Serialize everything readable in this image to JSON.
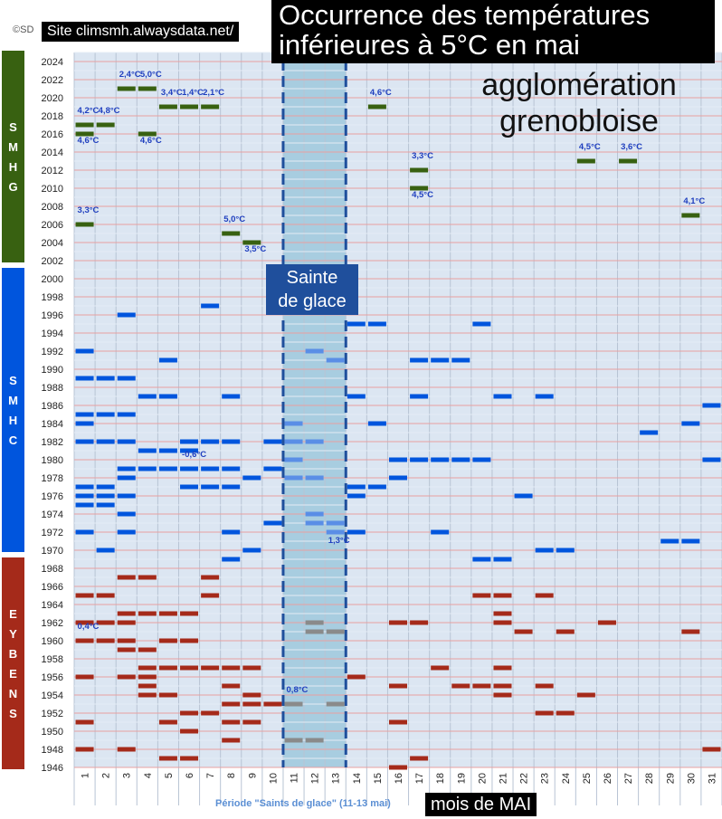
{
  "header": {
    "copyright": "©SD",
    "site": "Site climsmh.alwaysdata.net/",
    "title_line1": "Occurrence des températures",
    "title_line2": "inférieures à 5°C en mai",
    "subtitle_line1": "agglomération",
    "subtitle_line2": "grenobloise"
  },
  "annotations": {
    "saints_box_line1": "Sainte",
    "saints_box_line2": "de glace",
    "period_label": "Période \"Saints de glace\" (11-13 mai)",
    "xlabel": "mois de MAI"
  },
  "colors": {
    "smhg": "#386111",
    "smhc": "#0055dd",
    "eybens": "#a52a1a",
    "saints": "#7f9fbe",
    "saints_band": "#a8cde0",
    "grid_red": "#e8a0a0",
    "plot_bg": "#dce6f2",
    "label_blue": "#1f3fbf"
  },
  "chart_data": {
    "type": "scatter",
    "xlabel": "mois de MAI",
    "ylabel": "",
    "xlim": [
      1,
      31
    ],
    "ylim": [
      1946,
      2025
    ],
    "x_ticks": [
      1,
      2,
      3,
      4,
      5,
      6,
      7,
      8,
      9,
      10,
      11,
      12,
      13,
      14,
      15,
      16,
      17,
      18,
      19,
      20,
      21,
      22,
      23,
      24,
      25,
      26,
      27,
      28,
      29,
      30,
      31
    ],
    "y_ticks": [
      1946,
      1948,
      1950,
      1952,
      1954,
      1956,
      1958,
      1960,
      1962,
      1964,
      1966,
      1968,
      1970,
      1972,
      1974,
      1976,
      1978,
      1980,
      1982,
      1984,
      1986,
      1988,
      1990,
      1992,
      1994,
      1996,
      1998,
      2000,
      2002,
      2004,
      2006,
      2008,
      2010,
      2012,
      2014,
      2016,
      2018,
      2020,
      2022,
      2024
    ],
    "highlight_days": [
      11,
      13
    ],
    "stations": [
      {
        "name": "SMHG",
        "letters": "SMHG",
        "from": 2002,
        "to": 2024,
        "color": "#386111"
      },
      {
        "name": "SMHC",
        "letters": "SMHC",
        "from": 1970,
        "to": 2000,
        "color": "#0055dd"
      },
      {
        "name": "EYBENS",
        "letters": "EYBENS",
        "from": 1946,
        "to": 1968,
        "color": "#a52a1a"
      }
    ],
    "series": [
      {
        "name": "SMHG",
        "points": [
          [
            1,
            2006
          ],
          [
            1,
            2016
          ],
          [
            1,
            2017
          ],
          [
            2,
            2017
          ],
          [
            3,
            2021
          ],
          [
            4,
            2021
          ],
          [
            4,
            2016
          ],
          [
            5,
            2019
          ],
          [
            6,
            2019
          ],
          [
            7,
            2019
          ],
          [
            8,
            2005
          ],
          [
            9,
            2004
          ],
          [
            15,
            2019
          ],
          [
            17,
            2012
          ],
          [
            17,
            2010
          ],
          [
            25,
            2013
          ],
          [
            27,
            2013
          ],
          [
            30,
            2007
          ]
        ]
      },
      {
        "name": "SMHC",
        "points": [
          [
            1,
            1992
          ],
          [
            1,
            1989
          ],
          [
            1,
            1985
          ],
          [
            1,
            1984
          ],
          [
            1,
            1982
          ],
          [
            1,
            1977
          ],
          [
            1,
            1976
          ],
          [
            1,
            1975
          ],
          [
            1,
            1972
          ],
          [
            2,
            1989
          ],
          [
            2,
            1985
          ],
          [
            2,
            1982
          ],
          [
            2,
            1977
          ],
          [
            2,
            1976
          ],
          [
            2,
            1975
          ],
          [
            2,
            1970
          ],
          [
            3,
            1996
          ],
          [
            3,
            1989
          ],
          [
            3,
            1985
          ],
          [
            3,
            1982
          ],
          [
            3,
            1979
          ],
          [
            3,
            1978
          ],
          [
            3,
            1976
          ],
          [
            3,
            1974
          ],
          [
            3,
            1972
          ],
          [
            4,
            1987
          ],
          [
            4,
            1981
          ],
          [
            4,
            1979
          ],
          [
            5,
            1991
          ],
          [
            5,
            1987
          ],
          [
            5,
            1981
          ],
          [
            5,
            1979
          ],
          [
            6,
            1982
          ],
          [
            6,
            1981
          ],
          [
            6,
            1979
          ],
          [
            6,
            1977
          ],
          [
            7,
            1997
          ],
          [
            7,
            1982
          ],
          [
            7,
            1979
          ],
          [
            7,
            1977
          ],
          [
            8,
            1987
          ],
          [
            8,
            1982
          ],
          [
            8,
            1979
          ],
          [
            8,
            1977
          ],
          [
            8,
            1972
          ],
          [
            8,
            1969
          ],
          [
            9,
            1978
          ],
          [
            9,
            1970
          ],
          [
            10,
            1982
          ],
          [
            10,
            1979
          ],
          [
            10,
            1973
          ],
          [
            14,
            1995
          ],
          [
            14,
            1987
          ],
          [
            14,
            1977
          ],
          [
            14,
            1976
          ],
          [
            14,
            1972
          ],
          [
            15,
            1995
          ],
          [
            15,
            1984
          ],
          [
            15,
            1977
          ],
          [
            16,
            1980
          ],
          [
            16,
            1978
          ],
          [
            17,
            1991
          ],
          [
            17,
            1987
          ],
          [
            17,
            1980
          ],
          [
            18,
            1991
          ],
          [
            18,
            1980
          ],
          [
            18,
            1972
          ],
          [
            19,
            1991
          ],
          [
            19,
            1980
          ],
          [
            20,
            1995
          ],
          [
            20,
            1980
          ],
          [
            20,
            1969
          ],
          [
            21,
            1987
          ],
          [
            21,
            1969
          ],
          [
            22,
            1976
          ],
          [
            23,
            1987
          ],
          [
            23,
            1970
          ],
          [
            24,
            1970
          ],
          [
            28,
            1983
          ],
          [
            29,
            1971
          ],
          [
            30,
            1984
          ],
          [
            30,
            1971
          ],
          [
            31,
            1986
          ],
          [
            31,
            1980
          ]
        ]
      },
      {
        "name": "EYBENS",
        "points": [
          [
            1,
            1965
          ],
          [
            1,
            1962
          ],
          [
            1,
            1960
          ],
          [
            1,
            1956
          ],
          [
            1,
            1951
          ],
          [
            1,
            1948
          ],
          [
            2,
            1965
          ],
          [
            2,
            1962
          ],
          [
            2,
            1960
          ],
          [
            3,
            1967
          ],
          [
            3,
            1963
          ],
          [
            3,
            1962
          ],
          [
            3,
            1960
          ],
          [
            3,
            1959
          ],
          [
            3,
            1956
          ],
          [
            3,
            1948
          ],
          [
            4,
            1967
          ],
          [
            4,
            1963
          ],
          [
            4,
            1959
          ],
          [
            4,
            1957
          ],
          [
            4,
            1956
          ],
          [
            4,
            1955
          ],
          [
            4,
            1954
          ],
          [
            5,
            1963
          ],
          [
            5,
            1960
          ],
          [
            5,
            1957
          ],
          [
            5,
            1954
          ],
          [
            5,
            1951
          ],
          [
            5,
            1947
          ],
          [
            6,
            1963
          ],
          [
            6,
            1960
          ],
          [
            6,
            1957
          ],
          [
            6,
            1952
          ],
          [
            6,
            1950
          ],
          [
            6,
            1947
          ],
          [
            7,
            1967
          ],
          [
            7,
            1965
          ],
          [
            7,
            1957
          ],
          [
            7,
            1952
          ],
          [
            8,
            1957
          ],
          [
            8,
            1955
          ],
          [
            8,
            1953
          ],
          [
            8,
            1951
          ],
          [
            8,
            1949
          ],
          [
            9,
            1957
          ],
          [
            9,
            1954
          ],
          [
            9,
            1953
          ],
          [
            9,
            1951
          ],
          [
            10,
            1953
          ],
          [
            14,
            1956
          ],
          [
            16,
            1962
          ],
          [
            16,
            1955
          ],
          [
            16,
            1951
          ],
          [
            16,
            1946
          ],
          [
            17,
            1962
          ],
          [
            17,
            1947
          ],
          [
            18,
            1957
          ],
          [
            19,
            1955
          ],
          [
            20,
            1965
          ],
          [
            20,
            1955
          ],
          [
            21,
            1965
          ],
          [
            21,
            1963
          ],
          [
            21,
            1962
          ],
          [
            21,
            1957
          ],
          [
            21,
            1955
          ],
          [
            21,
            1954
          ],
          [
            22,
            1961
          ],
          [
            23,
            1965
          ],
          [
            23,
            1955
          ],
          [
            23,
            1952
          ],
          [
            24,
            1961
          ],
          [
            24,
            1952
          ],
          [
            25,
            1954
          ],
          [
            26,
            1962
          ],
          [
            30,
            1961
          ],
          [
            31,
            1948
          ]
        ]
      },
      {
        "name": "Saints de glace",
        "points": [
          [
            11,
            1984
          ],
          [
            11,
            1982
          ],
          [
            11,
            1980
          ],
          [
            11,
            1978
          ],
          [
            12,
            1992
          ],
          [
            12,
            1982
          ],
          [
            12,
            1978
          ],
          [
            12,
            1974
          ],
          [
            12,
            1973
          ],
          [
            13,
            1991
          ],
          [
            13,
            1973
          ],
          [
            13,
            1972
          ],
          [
            11,
            1953
          ],
          [
            11,
            1949
          ],
          [
            12,
            1962
          ],
          [
            12,
            1961
          ],
          [
            12,
            1949
          ],
          [
            13,
            1961
          ],
          [
            13,
            1953
          ]
        ]
      }
    ],
    "labels": [
      {
        "text": "4,2°C",
        "x": 1,
        "y": 2018.3
      },
      {
        "text": "4,8°C",
        "x": 2,
        "y": 2018.3
      },
      {
        "text": "4,6°C",
        "x": 1,
        "y": 2015
      },
      {
        "text": "2,4°C",
        "x": 3,
        "y": 2022.3
      },
      {
        "text": "5,0°C",
        "x": 4,
        "y": 2022.3
      },
      {
        "text": "4,6°C",
        "x": 4,
        "y": 2015
      },
      {
        "text": "3,4°C",
        "x": 5,
        "y": 2020.3
      },
      {
        "text": "1,4°C",
        "x": 6,
        "y": 2020.3
      },
      {
        "text": "2,1°C",
        "x": 7,
        "y": 2020.3
      },
      {
        "text": "3,3°C",
        "x": 1,
        "y": 2007.3
      },
      {
        "text": "5,0°C",
        "x": 8,
        "y": 2006.3
      },
      {
        "text": "3,5°C",
        "x": 9,
        "y": 2003
      },
      {
        "text": "4,6°C",
        "x": 15,
        "y": 2020.3
      },
      {
        "text": "3,3°C",
        "x": 17,
        "y": 2013.3
      },
      {
        "text": "4,5°C",
        "x": 17,
        "y": 2009
      },
      {
        "text": "4,5°C",
        "x": 25,
        "y": 2014.3
      },
      {
        "text": "3,6°C",
        "x": 27,
        "y": 2014.3
      },
      {
        "text": "4,1°C",
        "x": 30,
        "y": 2008.3
      },
      {
        "text": "-0,6°C",
        "x": 6,
        "y": 1980.3
      },
      {
        "text": "1,3°C",
        "x": 13,
        "y": 1970.8
      },
      {
        "text": "0,4°C",
        "x": 1,
        "y": 1961.3
      },
      {
        "text": "0,8°C",
        "x": 11,
        "y": 1954.3
      }
    ]
  }
}
